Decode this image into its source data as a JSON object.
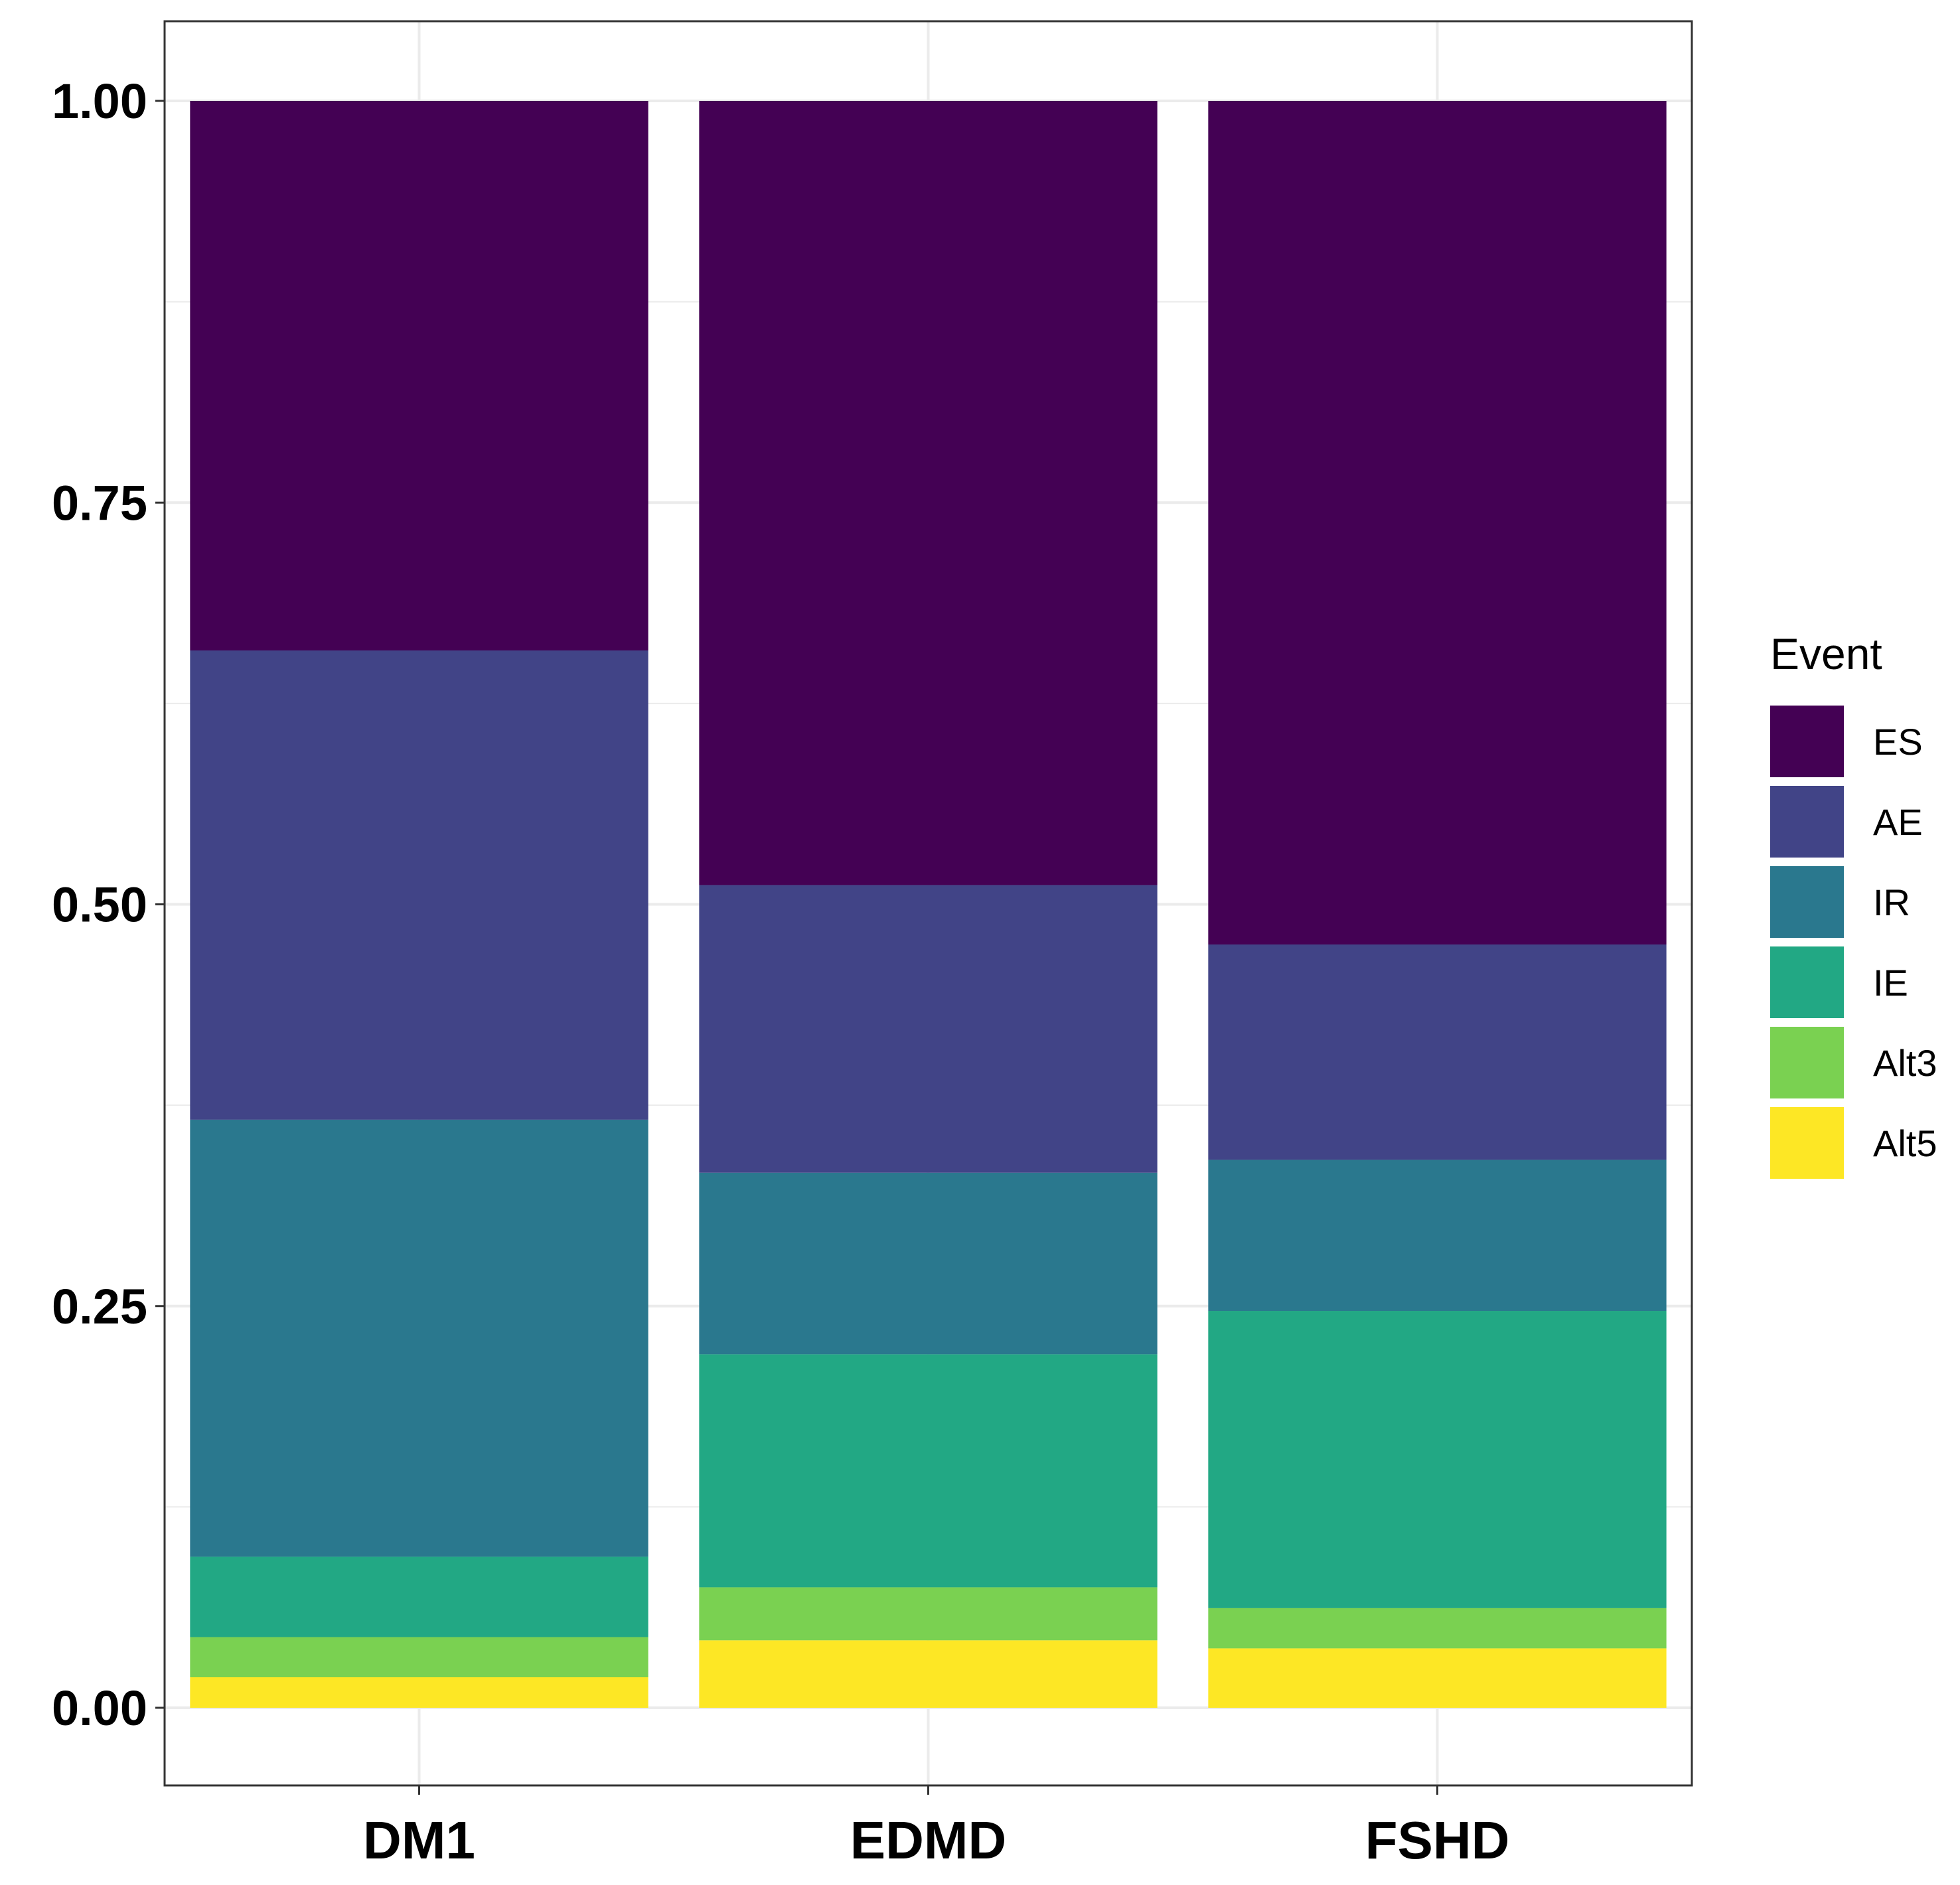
{
  "chart_data": {
    "type": "bar",
    "stacked": true,
    "categories": [
      "DM1",
      "EDMD",
      "FSHD"
    ],
    "series": [
      {
        "name": "ES",
        "color": "#440154",
        "values": [
          0.342,
          0.488,
          0.525
        ]
      },
      {
        "name": "AE",
        "color": "#414487",
        "values": [
          0.292,
          0.179,
          0.134
        ]
      },
      {
        "name": "IR",
        "color": "#2A788E",
        "values": [
          0.272,
          0.113,
          0.094
        ]
      },
      {
        "name": "IE",
        "color": "#22A884",
        "values": [
          0.05,
          0.145,
          0.185
        ]
      },
      {
        "name": "Alt3",
        "color": "#7AD151",
        "values": [
          0.025,
          0.033,
          0.025
        ]
      },
      {
        "name": "Alt5",
        "color": "#FDE725",
        "values": [
          0.019,
          0.042,
          0.037
        ]
      }
    ],
    "title": "",
    "xlabel": "",
    "ylabel": "",
    "ylim": [
      -0.05,
      1.05
    ],
    "yticks": [
      "0.00",
      "0.25",
      "0.50",
      "0.75",
      "1.00"
    ],
    "grid": true,
    "legend": {
      "title": "Event",
      "position": "right"
    }
  }
}
